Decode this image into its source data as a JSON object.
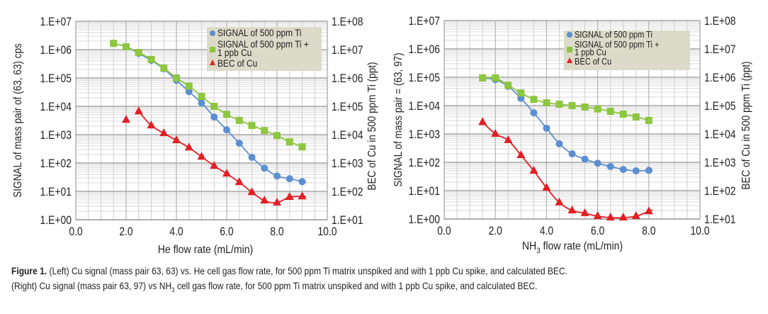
{
  "chart_data": [
    {
      "id": "left",
      "type": "line",
      "yscale": "log",
      "xlabel": "He flow rate (mL/min)",
      "ylabel": "SIGNAL of mass pair of (63, 63) cps",
      "y2label": "BEC of Cu in 500 ppm Ti (ppt)",
      "xlim": [
        0,
        10
      ],
      "ylim": [
        1,
        10000000
      ],
      "y2lim": [
        10,
        100000000
      ],
      "grid": true,
      "legend_position": "top-right",
      "xticks": [
        "0.0",
        "2.0",
        "4.0",
        "6.0",
        "8.0",
        "10.0"
      ],
      "yticks": [
        "1.E+00",
        "1.E+01",
        "1.E+02",
        "1.E+03",
        "1.E+04",
        "1.E+05",
        "1.E+06",
        "1.E+07"
      ],
      "y2ticks": [
        "1.E+01",
        "1.E+02",
        "1.E+03",
        "1.E+04",
        "1.E+05",
        "1.E+06",
        "1.E+07",
        "1.E+08"
      ],
      "series": [
        {
          "name": "SIGNAL of 500 ppm Ti",
          "marker": "circle",
          "color": "#5b8fd0",
          "axis": "left",
          "x": [
            1.5,
            2.0,
            2.5,
            3.0,
            3.5,
            4.0,
            4.5,
            5.0,
            5.5,
            6.0,
            6.5,
            7.0,
            7.5,
            8.0,
            8.5,
            9.0
          ],
          "values": [
            1660000,
            1260000,
            740000,
            420000,
            210000,
            83000,
            33000,
            13200,
            4200,
            1480,
            500,
            160,
            66,
            35,
            28,
            22
          ]
        },
        {
          "name": "SIGNAL of 500 ppm Ti + 1 ppb Cu",
          "marker": "square",
          "color": "#8dc63f",
          "axis": "left",
          "x": [
            1.5,
            2.0,
            2.5,
            3.0,
            3.5,
            4.0,
            4.5,
            5.0,
            5.5,
            6.0,
            6.5,
            7.0,
            7.5,
            8.0,
            8.5,
            9.0
          ],
          "values": [
            1660000,
            1260000,
            790000,
            450000,
            224000,
            100000,
            52000,
            22400,
            10000,
            5200,
            3200,
            2100,
            1400,
            930,
            560,
            370
          ]
        },
        {
          "name": "BEC of Cu",
          "marker": "triangle",
          "color": "#e31e24",
          "axis": "right",
          "x": [
            2.0,
            2.5,
            3.0,
            3.5,
            4.0,
            4.5,
            5.0,
            5.5,
            6.0,
            6.5,
            7.0,
            7.5,
            8.0,
            8.5,
            9.0
          ],
          "values": [
            33000,
            66000,
            21000,
            11200,
            6300,
            3500,
            1660,
            790,
            420,
            210,
            93,
            47,
            40,
            63,
            66
          ]
        }
      ]
    },
    {
      "id": "right",
      "type": "line",
      "yscale": "log",
      "xlabel": "NH3 flow rate (mL/min)",
      "ylabel": "SIGNAL of mass pair = (63, 97)",
      "y2label": "BEC of Cu in 500 ppm Ti (ppt)",
      "xlim": [
        0,
        10
      ],
      "ylim": [
        1,
        10000000
      ],
      "y2lim": [
        10,
        100000000
      ],
      "grid": true,
      "legend_position": "top-right",
      "xticks": [
        "0.0",
        "2.0",
        "4.0",
        "6.0",
        "8.0",
        "10.0"
      ],
      "yticks": [
        "1.E+00",
        "1.E+01",
        "1.E+02",
        "1.E+03",
        "1.E+04",
        "1.E+05",
        "1.E+06",
        "1.E+07"
      ],
      "y2ticks": [
        "1.E+01",
        "1.E+02",
        "1.E+03",
        "1.E+04",
        "1.E+05",
        "1.E+06",
        "1.E+07",
        "1.E+08"
      ],
      "series": [
        {
          "name": "SIGNAL of 500 ppm Ti",
          "marker": "circle",
          "color": "#5b8fd0",
          "axis": "left",
          "x": [
            1.5,
            2.0,
            2.5,
            3.0,
            3.5,
            4.0,
            4.5,
            5.0,
            5.5,
            6.0,
            6.5,
            7.0,
            7.5,
            8.0
          ],
          "values": [
            95000,
            83000,
            48000,
            18000,
            5600,
            1600,
            450,
            200,
            130,
            93,
            71,
            56,
            50,
            52
          ]
        },
        {
          "name": "SIGNAL of 500 ppm Ti + 1 ppb Cu",
          "marker": "square",
          "color": "#8dc63f",
          "axis": "left",
          "x": [
            1.5,
            2.0,
            2.5,
            3.0,
            3.5,
            4.0,
            4.5,
            5.0,
            5.5,
            6.0,
            6.5,
            7.0,
            7.5,
            8.0
          ],
          "values": [
            95000,
            95000,
            52000,
            28000,
            16600,
            12600,
            11200,
            10000,
            8900,
            7600,
            6300,
            5000,
            4000,
            3000
          ]
        },
        {
          "name": "BEC of Cu",
          "marker": "triangle",
          "color": "#e31e24",
          "axis": "right",
          "x": [
            1.5,
            2.0,
            2.5,
            3.0,
            3.5,
            4.0,
            4.5,
            5.0,
            5.5,
            6.0,
            6.5,
            7.0,
            7.5,
            8.0
          ],
          "values": [
            26000,
            10000,
            6000,
            1780,
            500,
            126,
            38,
            20,
            16,
            12.6,
            11.2,
            11.2,
            12.6,
            18.6
          ]
        }
      ]
    }
  ],
  "caption": {
    "label": "Figure 1.",
    "line1": " (Left) Cu signal (mass pair 63, 63) vs. He cell gas flow rate, for 500 ppm Ti matrix unspiked and with 1 ppb Cu spike, and calculated BEC.",
    "line2_pre": "(Right) Cu signal (mass pair 63, 97) vs NH",
    "line2_sub": "3",
    "line2_post": " cell gas flow rate, for 500 ppm Ti matrix unspiked and with 1 ppb Cu spike, and calculated BEC."
  }
}
